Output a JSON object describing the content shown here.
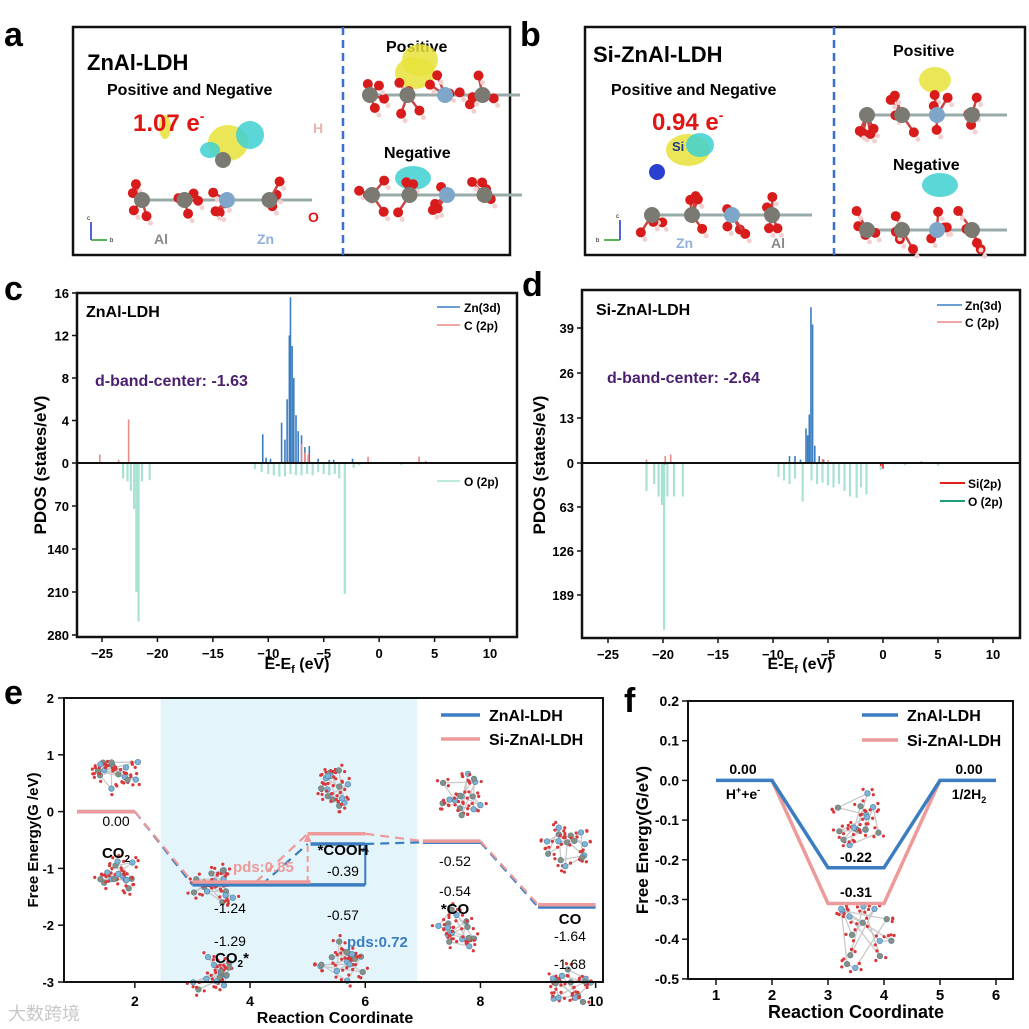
{
  "panel_letters": {
    "a": "a",
    "b": "b",
    "c": "c",
    "d": "d",
    "e": "e",
    "f": "f"
  },
  "panel_a": {
    "title": "ZnAl-LDH",
    "subtitle": "Positive and Negative",
    "charge": "1.07 e",
    "charge_sup": "-",
    "positive_label": "Positive",
    "negative_label": "Negative",
    "atom_labels": {
      "al": "Al",
      "zn": "Zn",
      "o": "O",
      "h": "H"
    },
    "axis_labels": {
      "c": "c",
      "b": "b"
    }
  },
  "panel_b": {
    "title": "Si-ZnAl-LDH",
    "subtitle": "Positive and Negative",
    "charge": "0.94 e",
    "charge_sup": "-",
    "positive_label": "Positive",
    "negative_label": "Negative",
    "atom_labels": {
      "si": "Si",
      "zn": "Zn",
      "al": "Al"
    },
    "axis_labels": {
      "c": "c",
      "b": "b"
    }
  },
  "colors": {
    "zn3d": "#3b7dc0",
    "c2p": "#ea8a8a",
    "o2p_fill": "#a9e2d2",
    "o2p_legend": "#1f9e7c",
    "si2p": "#e01e1e",
    "dband": "#4b1f6f",
    "charge": "#e01515",
    "znal": "#3b7dc0",
    "siznal": "#ec9a9a",
    "shade": "#e3f4fb",
    "dashed_divider": "#3d6fcf"
  },
  "chart_data": [
    {
      "id": "c",
      "type": "line",
      "subtype": "PDOS",
      "title": "ZnAl-LDH",
      "annotation": "d-band-center: -1.63",
      "xlabel": "E-E",
      "xlabel_sub": "f",
      "xlabel_unit": " (eV)",
      "ylabel": "PDOS (states/eV)",
      "xlim": [
        -27.5,
        12.5
      ],
      "ylim_upper": [
        0,
        16
      ],
      "ylim_lower": [
        0,
        280
      ],
      "xticks": [
        "−25",
        "−20",
        "−15",
        "−10",
        "−5",
        "0",
        "5",
        "10"
      ],
      "xtick_values": [
        -25,
        -20,
        -15,
        -10,
        -5,
        0,
        5,
        10
      ],
      "yticks_upper": [
        "0",
        "4",
        "8",
        "12",
        "16"
      ],
      "ytick_values_upper": [
        0,
        4,
        8,
        12,
        16
      ],
      "yticks_lower": [
        "70",
        "140",
        "210",
        "280"
      ],
      "ytick_values_lower": [
        70,
        140,
        210,
        280
      ],
      "legend": [
        "Zn(3d)",
        "C (2p)",
        "O (2p)"
      ],
      "series": [
        {
          "name": "Zn(3d)",
          "direction": "up",
          "peaks": [
            [
              -10.5,
              2.7
            ],
            [
              -10.2,
              0.5
            ],
            [
              -9.8,
              0.4
            ],
            [
              -8.8,
              3.8
            ],
            [
              -8.5,
              2.2
            ],
            [
              -8.3,
              6
            ],
            [
              -8.1,
              12
            ],
            [
              -8.0,
              15.6
            ],
            [
              -7.85,
              11
            ],
            [
              -7.7,
              8
            ],
            [
              -7.5,
              4.5
            ],
            [
              -7.3,
              3
            ],
            [
              -7.0,
              2.6
            ],
            [
              -6.7,
              1.5
            ],
            [
              -6.3,
              1.6
            ],
            [
              -5.5,
              0.4
            ],
            [
              -4.5,
              0.3
            ],
            [
              -4.1,
              0.3
            ],
            [
              -2.4,
              0.4
            ]
          ]
        },
        {
          "name": "C (2p)",
          "direction": "up",
          "peaks": [
            [
              -25.2,
              0.8
            ],
            [
              -23.5,
              0.3
            ],
            [
              -22.6,
              4.1
            ],
            [
              -7.0,
              1.8
            ],
            [
              -6.7,
              1.0
            ],
            [
              -6.4,
              0.8
            ],
            [
              -1.0,
              0.6
            ],
            [
              3.6,
              0.6
            ],
            [
              4.2,
              0.2
            ],
            [
              6,
              0.1
            ]
          ]
        },
        {
          "name": "O (2p)",
          "direction": "down",
          "peaks": [
            [
              -23.1,
              25
            ],
            [
              -22.7,
              30
            ],
            [
              -22.4,
              45
            ],
            [
              -22.1,
              75
            ],
            [
              -21.9,
              210
            ],
            [
              -21.7,
              258
            ],
            [
              -21.4,
              30
            ],
            [
              -20.7,
              28
            ],
            [
              -11.2,
              10
            ],
            [
              -10.6,
              15
            ],
            [
              -10.0,
              18
            ],
            [
              -9.5,
              20
            ],
            [
              -9.0,
              22
            ],
            [
              -8.5,
              22
            ],
            [
              -8.0,
              18
            ],
            [
              -7.5,
              20
            ],
            [
              -7.0,
              20
            ],
            [
              -6.5,
              18
            ],
            [
              -6.0,
              20
            ],
            [
              -5.5,
              15
            ],
            [
              -5.0,
              18
            ],
            [
              -4.5,
              20
            ],
            [
              -4.0,
              18
            ],
            [
              -3.6,
              25
            ],
            [
              -3.1,
              213
            ],
            [
              -2.3,
              8
            ],
            [
              -1.8,
              4
            ],
            [
              2.0,
              3
            ],
            [
              3.5,
              2
            ]
          ]
        }
      ]
    },
    {
      "id": "d",
      "type": "line",
      "subtype": "PDOS",
      "title": "Si-ZnAl-LDH",
      "annotation": "d-band-center: -2.64",
      "xlabel": "E-E",
      "xlabel_sub": "f",
      "xlabel_unit": " (eV)",
      "ylabel": "PDOS (states/eV)",
      "xlim": [
        -27.4,
        12.5
      ],
      "ylim_upper": [
        0,
        47
      ],
      "ylim_lower": [
        0,
        252
      ],
      "xticks": [
        "−25",
        "−20",
        "−15",
        "−10",
        "−5",
        "0",
        "5",
        "10"
      ],
      "xtick_values": [
        -25,
        -20,
        -15,
        -10,
        -5,
        0,
        5,
        10
      ],
      "yticks_upper": [
        "0",
        "13",
        "26",
        "39"
      ],
      "ytick_values_upper": [
        0,
        13,
        26,
        39
      ],
      "yticks_lower": [
        "63",
        "126",
        "189"
      ],
      "ytick_values_lower": [
        63,
        126,
        189
      ],
      "legend": [
        "Zn(3d)",
        "C (2p)",
        "Si(2p)",
        "O (2p)"
      ],
      "series": [
        {
          "name": "Zn(3d)",
          "direction": "up",
          "peaks": [
            [
              -8.5,
              2
            ],
            [
              -8.0,
              2
            ],
            [
              -7.5,
              1
            ],
            [
              -7.0,
              10
            ],
            [
              -6.85,
              8
            ],
            [
              -6.7,
              14
            ],
            [
              -6.55,
              45
            ],
            [
              -6.4,
              40
            ],
            [
              -6.2,
              5
            ],
            [
              -5.8,
              2
            ],
            [
              -5.4,
              1
            ]
          ]
        },
        {
          "name": "C (2p)",
          "direction": "up",
          "peaks": [
            [
              -21.5,
              1
            ],
            [
              -19.8,
              2
            ],
            [
              -19.3,
              2.5
            ],
            [
              -5.5,
              1.2
            ],
            [
              -5.0,
              0.8
            ],
            [
              3.5,
              0.5
            ]
          ]
        },
        {
          "name": "Si(2p)",
          "direction": "down",
          "peaks": [
            [
              -19.8,
              2
            ],
            [
              0.0,
              8
            ],
            [
              -0.2,
              4
            ]
          ]
        },
        {
          "name": "O (2p)",
          "direction": "down",
          "peaks": [
            [
              -21.5,
              40
            ],
            [
              -20.8,
              30
            ],
            [
              -20.4,
              48
            ],
            [
              -20.1,
              60
            ],
            [
              -19.9,
              239
            ],
            [
              -19.6,
              48
            ],
            [
              -19.0,
              48
            ],
            [
              -18.2,
              48
            ],
            [
              -9.5,
              20
            ],
            [
              -9.0,
              25
            ],
            [
              -8.5,
              30
            ],
            [
              -8.0,
              22
            ],
            [
              -7.3,
              55
            ],
            [
              -6.5,
              25
            ],
            [
              -6.0,
              30
            ],
            [
              -5.5,
              28
            ],
            [
              -5.0,
              32
            ],
            [
              -4.5,
              35
            ],
            [
              -4.0,
              30
            ],
            [
              -3.5,
              40
            ],
            [
              -3.0,
              48
            ],
            [
              -2.4,
              50
            ],
            [
              -2.0,
              35
            ],
            [
              -1.5,
              45
            ],
            [
              -0.2,
              10
            ],
            [
              2,
              3
            ],
            [
              5,
              4
            ]
          ]
        }
      ]
    },
    {
      "id": "e",
      "type": "line",
      "subtype": "free-energy-diagram",
      "xlabel": "Reaction Coordinate",
      "ylabel": "Free Energy(G /eV)",
      "xlim": [
        0.77,
        10.14
      ],
      "ylim": [
        -3,
        2
      ],
      "xticks": [
        "2",
        "4",
        "6",
        "8",
        "10"
      ],
      "xtick_values": [
        2,
        4,
        6,
        8,
        10
      ],
      "yticks": [
        "2",
        "1",
        "0",
        "-1",
        "-2",
        "-3"
      ],
      "ytick_values": [
        2,
        1,
        0,
        -1,
        -2,
        -3
      ],
      "shaded_region_x": [
        2.45,
        6.9
      ],
      "legend": [
        "ZnAl-LDH",
        "Si-ZnAl-LDH"
      ],
      "series": [
        {
          "name": "ZnAl-LDH",
          "levels": [
            [
              1,
              2,
              0
            ],
            [
              3,
              6,
              -1.29
            ],
            [
              5.05,
              6,
              -0.57
            ],
            [
              7,
              8,
              -0.54
            ],
            [
              9,
              10,
              -1.68
            ]
          ],
          "connectors": [
            [
              2,
              0,
              3,
              -1.29
            ],
            [
              4.2,
              -1.29,
              5,
              -0.57
            ],
            [
              6,
              -0.57,
              7,
              -0.54
            ],
            [
              8,
              -0.54,
              9,
              -1.68
            ]
          ],
          "arrow": [
            6,
            -1.29,
            6,
            -0.57
          ]
        },
        {
          "name": "Si-ZnAl-LDH",
          "levels": [
            [
              1,
              2,
              0
            ],
            [
              3,
              5.05,
              -1.24
            ],
            [
              5,
              6,
              -0.39
            ],
            [
              7,
              8,
              -0.52
            ],
            [
              9,
              10,
              -1.64
            ]
          ],
          "connectors": [
            [
              2,
              0,
              3,
              -1.24
            ],
            [
              4.1,
              -1.24,
              5,
              -0.39
            ],
            [
              6,
              -0.39,
              7,
              -0.52
            ],
            [
              8,
              -0.52,
              9,
              -1.64
            ]
          ],
          "arrow": [
            5,
            -1.24,
            5,
            -0.39
          ]
        }
      ],
      "labels": {
        "co2_value": "0.00",
        "co2_name": "CO",
        "co2_sub": "2",
        "co2star_si": "-1.24",
        "co2star_zn": "-1.29",
        "co2star_name": "CO",
        "co2star_sub": "2",
        "co2star_star": "*",
        "cooh_name": "*COOH",
        "cooh_si": "-0.39",
        "cooh_zn": "-0.57",
        "pds_si": "pds:0.85",
        "pds_zn": "pds:0.72",
        "co_ads_si": "-0.52",
        "co_ads_zn": "-0.54",
        "co_ads_name": "*CO",
        "co_name": "CO",
        "co_si": "-1.64",
        "co_zn": "-1.68"
      }
    },
    {
      "id": "f",
      "type": "line",
      "subtype": "free-energy-diagram",
      "xlabel": "Reaction Coordinate",
      "ylabel": "Free Energy(G/eV)",
      "xlim": [
        0.5,
        6.3
      ],
      "ylim": [
        -0.5,
        0.2
      ],
      "xticks": [
        "1",
        "2",
        "3",
        "4",
        "5",
        "6"
      ],
      "xtick_values": [
        1,
        2,
        3,
        4,
        5,
        6
      ],
      "yticks": [
        "0.2",
        "0.1",
        "0.0",
        "-0.1",
        "-0.2",
        "-0.3",
        "-0.4",
        "-0.5"
      ],
      "ytick_values": [
        0.2,
        0.1,
        0.0,
        -0.1,
        -0.2,
        -0.3,
        -0.4,
        -0.5
      ],
      "legend": [
        "ZnAl-LDH",
        "Si-ZnAl-LDH"
      ],
      "series": [
        {
          "name": "ZnAl-LDH",
          "points": [
            [
              1,
              0
            ],
            [
              2,
              0
            ],
            [
              3,
              -0.22
            ],
            [
              4,
              -0.22
            ],
            [
              5,
              0
            ],
            [
              6,
              0
            ]
          ]
        },
        {
          "name": "Si-ZnAl-LDH",
          "points": [
            [
              2,
              0
            ],
            [
              3,
              -0.31
            ],
            [
              4,
              -0.31
            ],
            [
              5,
              0
            ]
          ]
        }
      ],
      "labels": {
        "start_value": "0.00",
        "start_name_h": "H",
        "start_name_plus": "+",
        "start_name_e": "+e",
        "start_name_minus": "-",
        "end_value": "0.00",
        "end_name": "1/2H",
        "end_sub": "2",
        "zn_value": "-0.22",
        "si_value": "-0.31"
      }
    }
  ],
  "watermark": "大数跨境"
}
